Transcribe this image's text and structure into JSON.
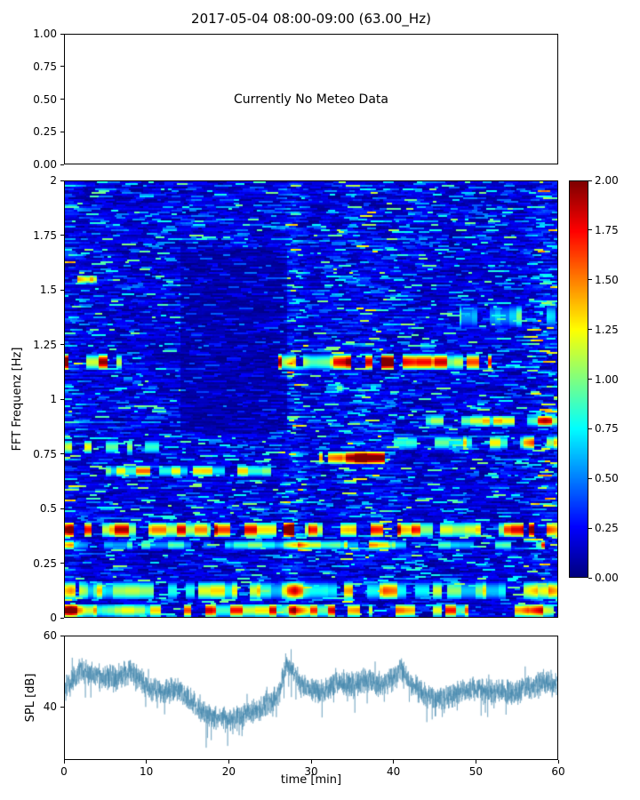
{
  "chart_data": [
    {
      "type": "empty",
      "panel": "meteo",
      "title": "2017-05-04 08:00-09:00 (63.00_Hz)",
      "annotation": "Currently No Meteo Data",
      "ylim": [
        0,
        1
      ],
      "yticks": [
        "1.00",
        "0.75",
        "0.50",
        "0.25",
        "0.00"
      ],
      "grid": false
    },
    {
      "type": "heatmap",
      "panel": "fft-spectrogram",
      "ylabel": "FFT Frequenz [Hz]",
      "xlim": [
        0,
        60
      ],
      "ylim": [
        0,
        2
      ],
      "yticks": [
        "2",
        "1.75",
        "1.5",
        "1.25",
        "1",
        "0.75",
        "0.5",
        "0.25",
        "0"
      ],
      "colormap": "jet",
      "colorbar": {
        "vmin": 0.0,
        "vmax": 2.0,
        "ticks": [
          "2.00",
          "1.75",
          "1.50",
          "1.25",
          "1.00",
          "0.75",
          "0.50",
          "0.25",
          "0.00"
        ]
      },
      "grid": false,
      "background_level": [
        0.05,
        0.4
      ],
      "bands": [
        {
          "f": 1.17,
          "df": 0.035,
          "t0": 0,
          "t1": 7,
          "base": 1.1,
          "peak": 2.0
        },
        {
          "f": 1.17,
          "df": 0.035,
          "t0": 26,
          "t1": 52,
          "base": 0.9,
          "peak": 2.0
        },
        {
          "f": 1.55,
          "df": 0.02,
          "t0": 1.5,
          "t1": 4,
          "base": 1.2,
          "peak": 2.0
        },
        {
          "f": 1.05,
          "df": 0.02,
          "t0": 26,
          "t1": 34,
          "base": 0.5,
          "peak": 1.0
        },
        {
          "f": 0.78,
          "df": 0.03,
          "t0": 0,
          "t1": 12,
          "base": 0.8,
          "peak": 1.5
        },
        {
          "f": 0.73,
          "df": 0.03,
          "t0": 31,
          "t1": 39,
          "base": 1.3,
          "peak": 2.0
        },
        {
          "f": 0.67,
          "df": 0.025,
          "t0": 5,
          "t1": 26,
          "base": 0.7,
          "peak": 1.8
        },
        {
          "f": 0.8,
          "df": 0.03,
          "t0": 40,
          "t1": 60,
          "base": 0.7,
          "peak": 1.6
        },
        {
          "f": 0.9,
          "df": 0.025,
          "t0": 44,
          "t1": 60,
          "base": 0.7,
          "peak": 1.5
        },
        {
          "f": 0.4,
          "df": 0.035,
          "t0": 0,
          "t1": 60,
          "base": 1.0,
          "peak": 2.0
        },
        {
          "f": 0.33,
          "df": 0.02,
          "t0": 0,
          "t1": 60,
          "base": 0.5,
          "peak": 1.2
        },
        {
          "f": 0.12,
          "df": 0.04,
          "t0": 0,
          "t1": 60,
          "base": 0.6,
          "peak": 1.4
        },
        {
          "f": 0.03,
          "df": 0.03,
          "t0": 0,
          "t1": 60,
          "base": 0.8,
          "peak": 2.0
        },
        {
          "f": 1.38,
          "df": 0.05,
          "t0": 48,
          "t1": 60,
          "base": 0.5,
          "peak": 1.1
        }
      ],
      "active_columns": [
        {
          "t": 0.7,
          "w": 2,
          "gain": 1.4
        },
        {
          "t": 28,
          "w": 2,
          "gain": 1.6
        },
        {
          "t": 37,
          "w": 6,
          "gain": 1.3
        },
        {
          "t": 58.5,
          "w": 3,
          "gain": 1.5
        }
      ],
      "quiet_region": {
        "t0": 14,
        "t1": 27,
        "f0": 0.85,
        "f1": 1.7,
        "gain": 0.5
      }
    },
    {
      "type": "line",
      "panel": "spl",
      "ylabel": "SPL [dB]",
      "xlabel": "time [min]",
      "xlim": [
        0,
        60
      ],
      "ylim": [
        25,
        60
      ],
      "yticks": [
        "60",
        "40"
      ],
      "ytick_values": [
        60,
        40
      ],
      "xticks": [
        "0",
        "10",
        "20",
        "30",
        "40",
        "50",
        "60"
      ],
      "xtick_values": [
        0,
        10,
        20,
        30,
        40,
        50,
        60
      ],
      "line_color": "#4487ad",
      "keypoints_t": [
        0,
        1,
        2,
        4,
        6,
        8,
        10,
        12,
        14,
        16,
        18,
        20,
        22,
        24,
        26,
        27,
        28,
        29,
        31,
        33,
        35,
        37,
        39,
        41,
        42,
        44,
        46,
        48,
        50,
        52,
        54,
        56,
        58,
        60
      ],
      "keypoints_spl": [
        45,
        48,
        50,
        49,
        48,
        50,
        46,
        44,
        45,
        40,
        37,
        36,
        38,
        40,
        43,
        52,
        49,
        46,
        44,
        47,
        46,
        48,
        46,
        51,
        47,
        43,
        42,
        44,
        45,
        44,
        44,
        45,
        47,
        46
      ]
    }
  ]
}
